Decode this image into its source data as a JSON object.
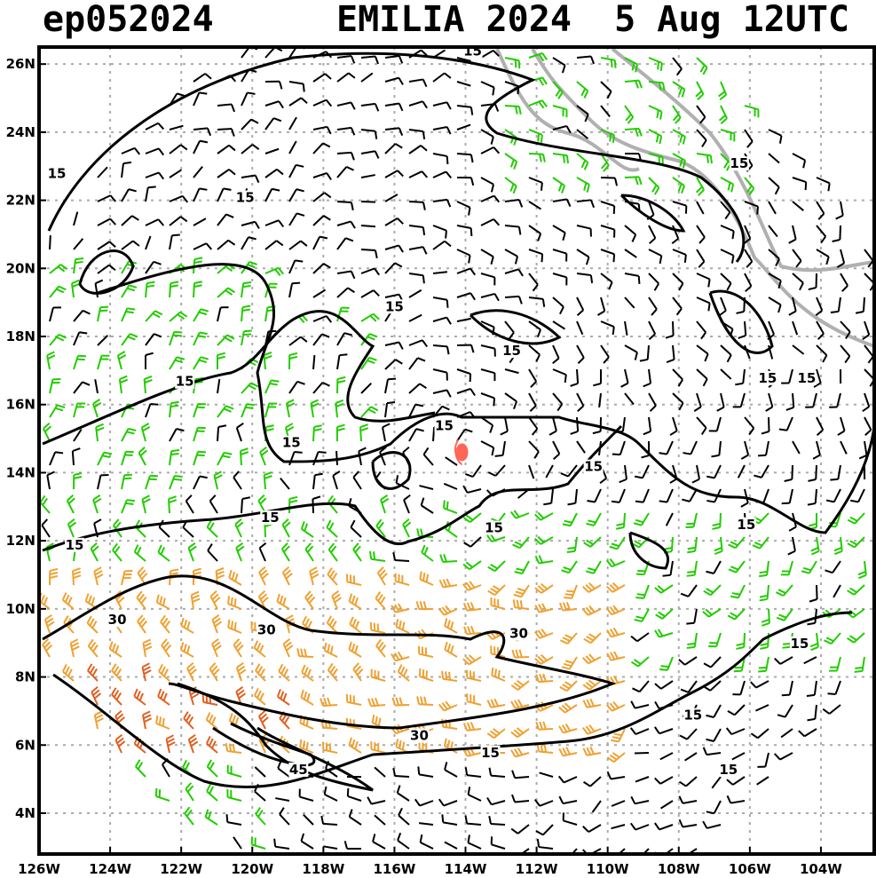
{
  "header": {
    "storm_id": "ep052024",
    "storm_name_year": "EMILIA 2024",
    "valid_time": "5 Aug 12UTC"
  },
  "map": {
    "lon_min": -126,
    "lon_max": -102.5,
    "lat_min": 2.8,
    "lat_max": 26.5,
    "x_ticks": [
      "126W",
      "124W",
      "122W",
      "120W",
      "118W",
      "116W",
      "114W",
      "112W",
      "110W",
      "108W",
      "106W",
      "104W"
    ],
    "y_ticks": [
      "26N",
      "24N",
      "22N",
      "20N",
      "18N",
      "16N",
      "14N",
      "12N",
      "10N",
      "8N",
      "6N",
      "4N"
    ],
    "gridlines": true,
    "storm_center": {
      "lon": -114.1,
      "lat": 14.6
    },
    "colors": {
      "barb_weak": "#000000",
      "barb_moderate": "#22cc00",
      "barb_strong": "#f0a030",
      "barb_very_strong": "#e06020",
      "contour": "#000000",
      "coastline": "#b0b0b0",
      "storm_marker": "#ff6655",
      "grid": "#aaaaaa"
    },
    "contour_labels": [
      {
        "text": "15",
        "lon": -113.8,
        "lat": 26.3
      },
      {
        "text": "15",
        "lon": -125.5,
        "lat": 22.7
      },
      {
        "text": "15",
        "lon": -120.2,
        "lat": 22.0
      },
      {
        "text": "15",
        "lon": -106.3,
        "lat": 23.0
      },
      {
        "text": "15",
        "lon": -116.0,
        "lat": 18.8
      },
      {
        "text": "15",
        "lon": -112.7,
        "lat": 17.5
      },
      {
        "text": "15",
        "lon": -121.9,
        "lat": 16.6
      },
      {
        "text": "15",
        "lon": -105.5,
        "lat": 16.7
      },
      {
        "text": "15",
        "lon": -104.4,
        "lat": 16.7
      },
      {
        "text": "15",
        "lon": -114.6,
        "lat": 15.3
      },
      {
        "text": "15",
        "lon": -118.9,
        "lat": 14.8
      },
      {
        "text": "15",
        "lon": -110.4,
        "lat": 14.1
      },
      {
        "text": "15",
        "lon": -119.5,
        "lat": 12.6
      },
      {
        "text": "15",
        "lon": -106.1,
        "lat": 12.4
      },
      {
        "text": "15",
        "lon": -125.0,
        "lat": 11.8
      },
      {
        "text": "15",
        "lon": -113.2,
        "lat": 12.3
      },
      {
        "text": "30",
        "lon": -123.8,
        "lat": 9.6
      },
      {
        "text": "30",
        "lon": -119.6,
        "lat": 9.3
      },
      {
        "text": "30",
        "lon": -112.5,
        "lat": 9.2
      },
      {
        "text": "15",
        "lon": -104.6,
        "lat": 8.9
      },
      {
        "text": "15",
        "lon": -107.6,
        "lat": 6.8
      },
      {
        "text": "30",
        "lon": -115.3,
        "lat": 6.2
      },
      {
        "text": "15",
        "lon": -113.3,
        "lat": 5.7
      },
      {
        "text": "45",
        "lon": -118.7,
        "lat": 5.2
      },
      {
        "text": "15",
        "lon": -106.6,
        "lat": 5.2
      }
    ]
  }
}
